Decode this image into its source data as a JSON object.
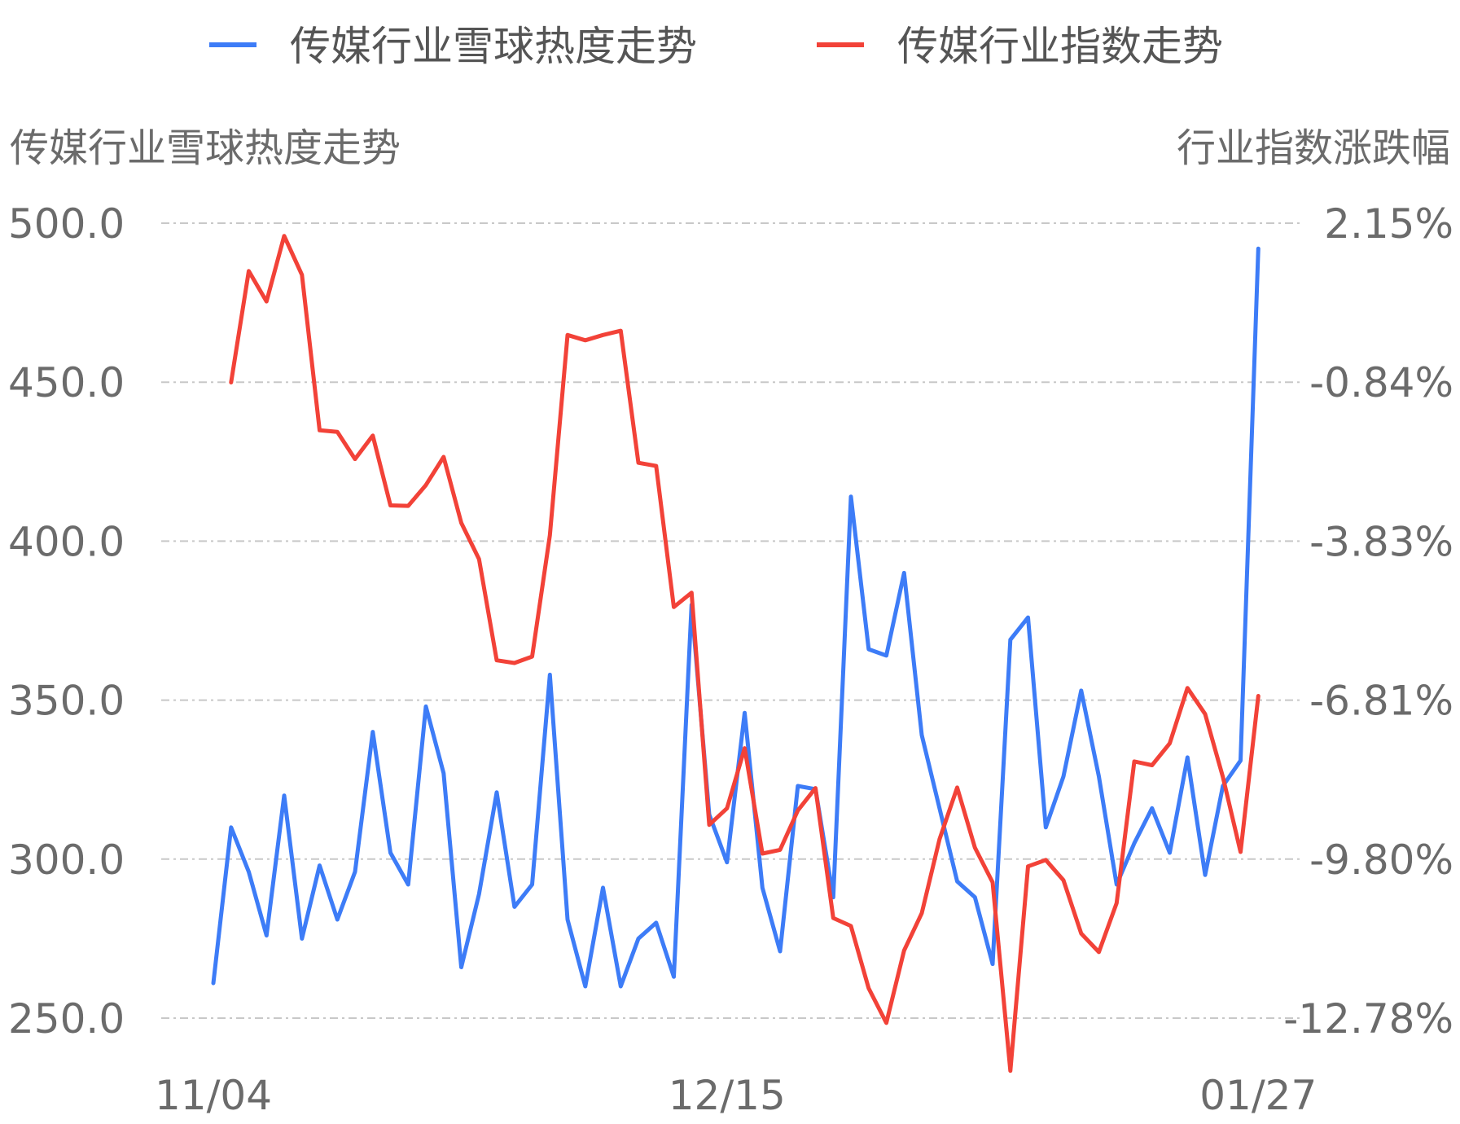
{
  "chart_data": {
    "type": "line",
    "dual_axis": true,
    "legend": [
      {
        "name": "传媒行业雪球热度走势",
        "color": "#3d7cf7"
      },
      {
        "name": "传媒行业指数走势",
        "color": "#f24238"
      }
    ],
    "legend_position": "top-center",
    "y_left_label": "传媒行业雪球热度走势",
    "y_right_label": "行业指数涨跌幅",
    "y_left_ticks": [
      "250.0",
      "300.0",
      "350.0",
      "400.0",
      "450.0",
      "500.0"
    ],
    "y_right_ticks": [
      "-12.78%",
      "-9.80%",
      "-6.81%",
      "-3.83%",
      "-0.84%",
      "2.15%"
    ],
    "y_left_range": [
      250,
      500
    ],
    "y_right_range": [
      -12.78,
      2.15
    ],
    "x_ticks": [
      {
        "label": "11/04",
        "index": 0
      },
      {
        "label": "12/15",
        "index": 29
      },
      {
        "label": "01/27",
        "index": 59
      }
    ],
    "grid": "horizontal-dashed",
    "series": [
      {
        "name": "传媒行业雪球热度走势",
        "axis": "left",
        "color": "#3d7cf7",
        "values": [
          261,
          310,
          296,
          276,
          320,
          275,
          298,
          281,
          296,
          340,
          302,
          292,
          348,
          327,
          266,
          289,
          321,
          285,
          292,
          358,
          281,
          260,
          291,
          260,
          275,
          280,
          263,
          380,
          314,
          299,
          346,
          291,
          271,
          323,
          322,
          288,
          414,
          366,
          364,
          390,
          339,
          316,
          293,
          288,
          267,
          369,
          376,
          310,
          326,
          353,
          326,
          292,
          305,
          316,
          302,
          332,
          295,
          323,
          331,
          492
        ],
        "x_index_start": 0
      },
      {
        "name": "传媒行业指数走势",
        "axis": "right",
        "color": "#f24238",
        "values": [
          -0.84,
          1.25,
          0.68,
          1.91,
          1.18,
          -1.74,
          -1.77,
          -2.28,
          -1.84,
          -3.15,
          -3.16,
          -2.77,
          -2.24,
          -3.48,
          -4.16,
          -6.06,
          -6.11,
          -5.99,
          -3.71,
          0.05,
          -0.05,
          0.05,
          0.13,
          -2.35,
          -2.41,
          -5.06,
          -4.79,
          -9.15,
          -8.84,
          -7.71,
          -9.69,
          -9.62,
          -8.88,
          -8.46,
          -10.9,
          -11.05,
          -12.22,
          -12.87,
          -11.51,
          -10.81,
          -9.42,
          -8.45,
          -9.58,
          -10.23,
          -13.77,
          -9.93,
          -9.81,
          -10.19,
          -11.19,
          -11.54,
          -10.62,
          -7.96,
          -8.03,
          -7.62,
          -6.58,
          -7.07,
          -8.25,
          -9.66,
          -6.73
        ],
        "x_index_start": 1
      }
    ]
  }
}
